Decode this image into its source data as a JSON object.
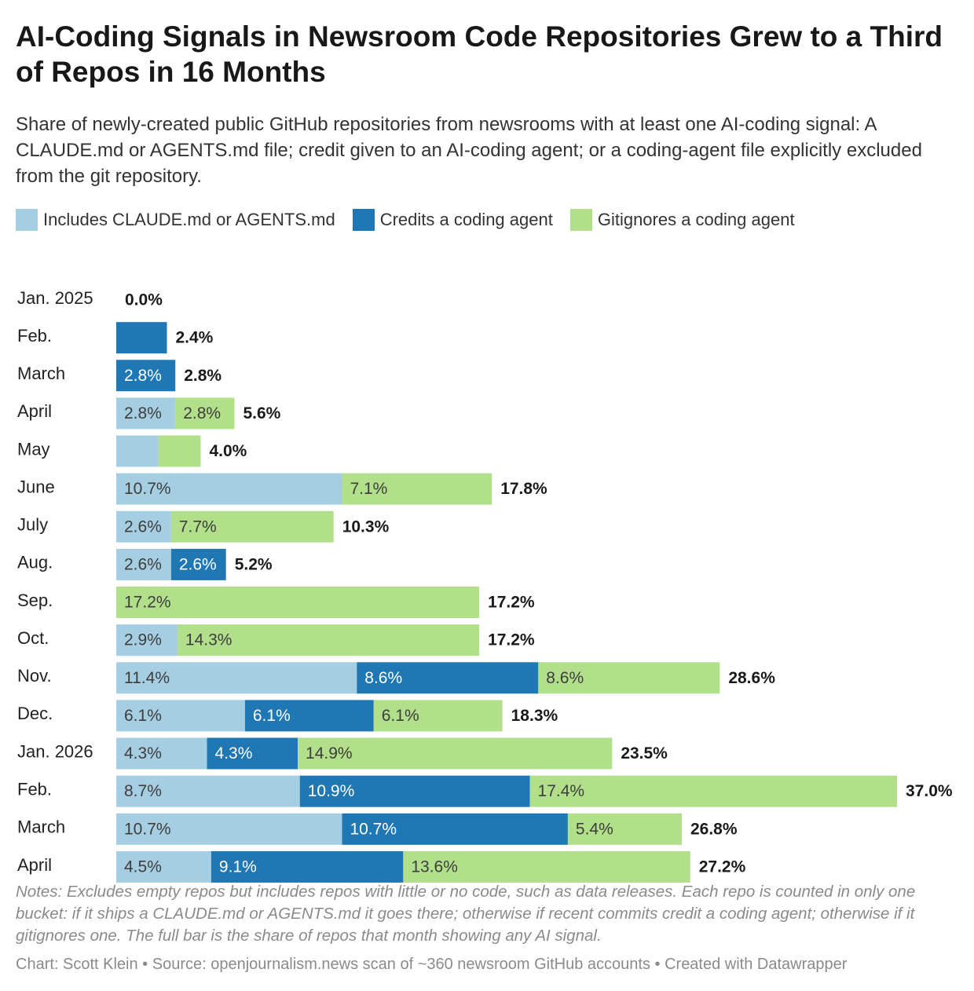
{
  "header": {
    "title": "AI-Coding Signals in Newsroom Code Repositories Grew to a Third of Repos in 16 Months",
    "subtitle": "Share of newly-created public GitHub repositories from newsrooms with at least one AI-coding signal: A CLAUDE.md or AGENTS.md file; credit given to an AI-coding agent; or a coding-agent file explicitly excluded from the git repository."
  },
  "footer": {
    "notes": "Notes: Excludes empty repos but includes repos with little or no code, such as data releases. Each repo is counted in only one bucket: if it ships a CLAUDE.md or AGENTS.md it goes there; otherwise if recent commits credit a coding agent; otherwise if it gitignores one. The full bar is the share of repos that month showing any AI signal.",
    "credits": "Chart: Scott Klein • Source: openjournalism.news scan of ~360 newsroom GitHub accounts • Created with Datawrapper"
  },
  "chart_data": {
    "type": "bar",
    "orientation": "horizontal",
    "stacked": true,
    "xlim": [
      0,
      37
    ],
    "legend_position": "top-left",
    "grid": false,
    "unit": "%",
    "categories": [
      "Jan. 2025",
      "Feb.",
      "March",
      "April",
      "May",
      "June",
      "July",
      "Aug.",
      "Sep.",
      "Oct.",
      "Nov.",
      "Dec.",
      "Jan. 2026",
      "Feb.",
      "March",
      "April"
    ],
    "series": [
      {
        "name": "Includes CLAUDE.md or AGENTS.md",
        "color": "#a6cee3",
        "label_color": "#3d3d3d",
        "values": [
          0,
          0,
          0,
          2.8,
          2.0,
          10.7,
          2.6,
          2.6,
          0,
          2.9,
          11.4,
          6.1,
          4.3,
          8.7,
          10.7,
          4.5
        ],
        "labels": [
          "",
          "",
          "",
          "2.8%",
          "",
          "10.7%",
          "2.6%",
          "2.6%",
          "",
          "2.9%",
          "11.4%",
          "6.1%",
          "4.3%",
          "8.7%",
          "10.7%",
          "4.5%"
        ]
      },
      {
        "name": "Credits a coding agent",
        "color": "#1f78b4",
        "label_color": "#ffffff",
        "values": [
          0,
          2.4,
          2.8,
          0,
          0,
          0,
          0,
          2.6,
          0,
          0,
          8.6,
          6.1,
          4.3,
          10.9,
          10.7,
          9.1
        ],
        "labels": [
          "",
          "",
          "2.8%",
          "",
          "",
          "",
          "",
          "2.6%",
          "",
          "",
          "8.6%",
          "6.1%",
          "4.3%",
          "10.9%",
          "10.7%",
          "9.1%"
        ]
      },
      {
        "name": "Gitignores a coding agent",
        "color": "#b2df8a",
        "label_color": "#3d3d3d",
        "values": [
          0,
          0,
          0,
          2.8,
          2.0,
          7.1,
          7.7,
          0,
          17.2,
          14.3,
          8.6,
          6.1,
          14.9,
          17.4,
          5.4,
          13.6
        ],
        "labels": [
          "",
          "",
          "",
          "2.8%",
          "",
          "7.1%",
          "7.7%",
          "",
          "17.2%",
          "14.3%",
          "8.6%",
          "6.1%",
          "14.9%",
          "17.4%",
          "5.4%",
          "13.6%"
        ]
      }
    ],
    "totals": [
      0.0,
      2.4,
      2.8,
      5.6,
      4.0,
      17.8,
      10.3,
      5.2,
      17.2,
      17.2,
      28.6,
      18.3,
      23.5,
      37.0,
      26.8,
      27.2
    ],
    "total_labels": [
      "0.0%",
      "2.4%",
      "2.8%",
      "5.6%",
      "4.0%",
      "17.8%",
      "10.3%",
      "5.2%",
      "17.2%",
      "17.2%",
      "28.6%",
      "18.3%",
      "23.5%",
      "37.0%",
      "26.8%",
      "27.2%"
    ]
  }
}
